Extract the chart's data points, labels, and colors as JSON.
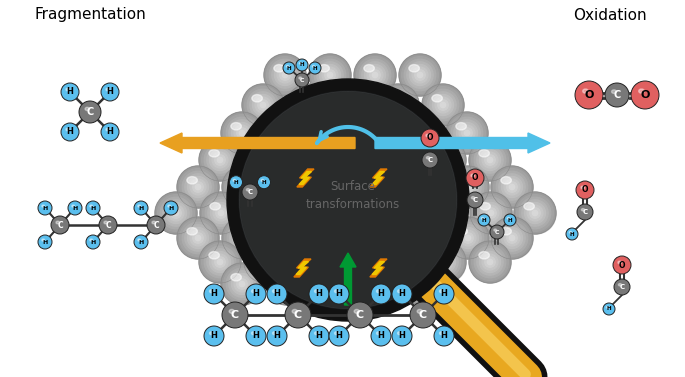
{
  "title_left": "Fragmentation",
  "title_right": "Oxidation",
  "surface_text": "Surface\ntransformations",
  "bg_color": "#ffffff",
  "carbon_color": "#787878",
  "hydrogen_color": "#5bbfee",
  "oxygen_color": "#e06060",
  "bond_color": "#333333",
  "arrow_orange": "#e8a020",
  "arrow_blue": "#50c0e8",
  "arrow_green": "#009933",
  "lightning_yellow": "#f0c800",
  "lightning_orange": "#e07800",
  "magnifier_ring": "#111111",
  "magnifier_handle": "#e8a820",
  "magnifier_handle_dark": "#b07010",
  "font_size_title": 11,
  "sphere_base": "#b0b0b0",
  "sphere_mid": "#c8c8c8",
  "sphere_light": "#d8d8d8"
}
